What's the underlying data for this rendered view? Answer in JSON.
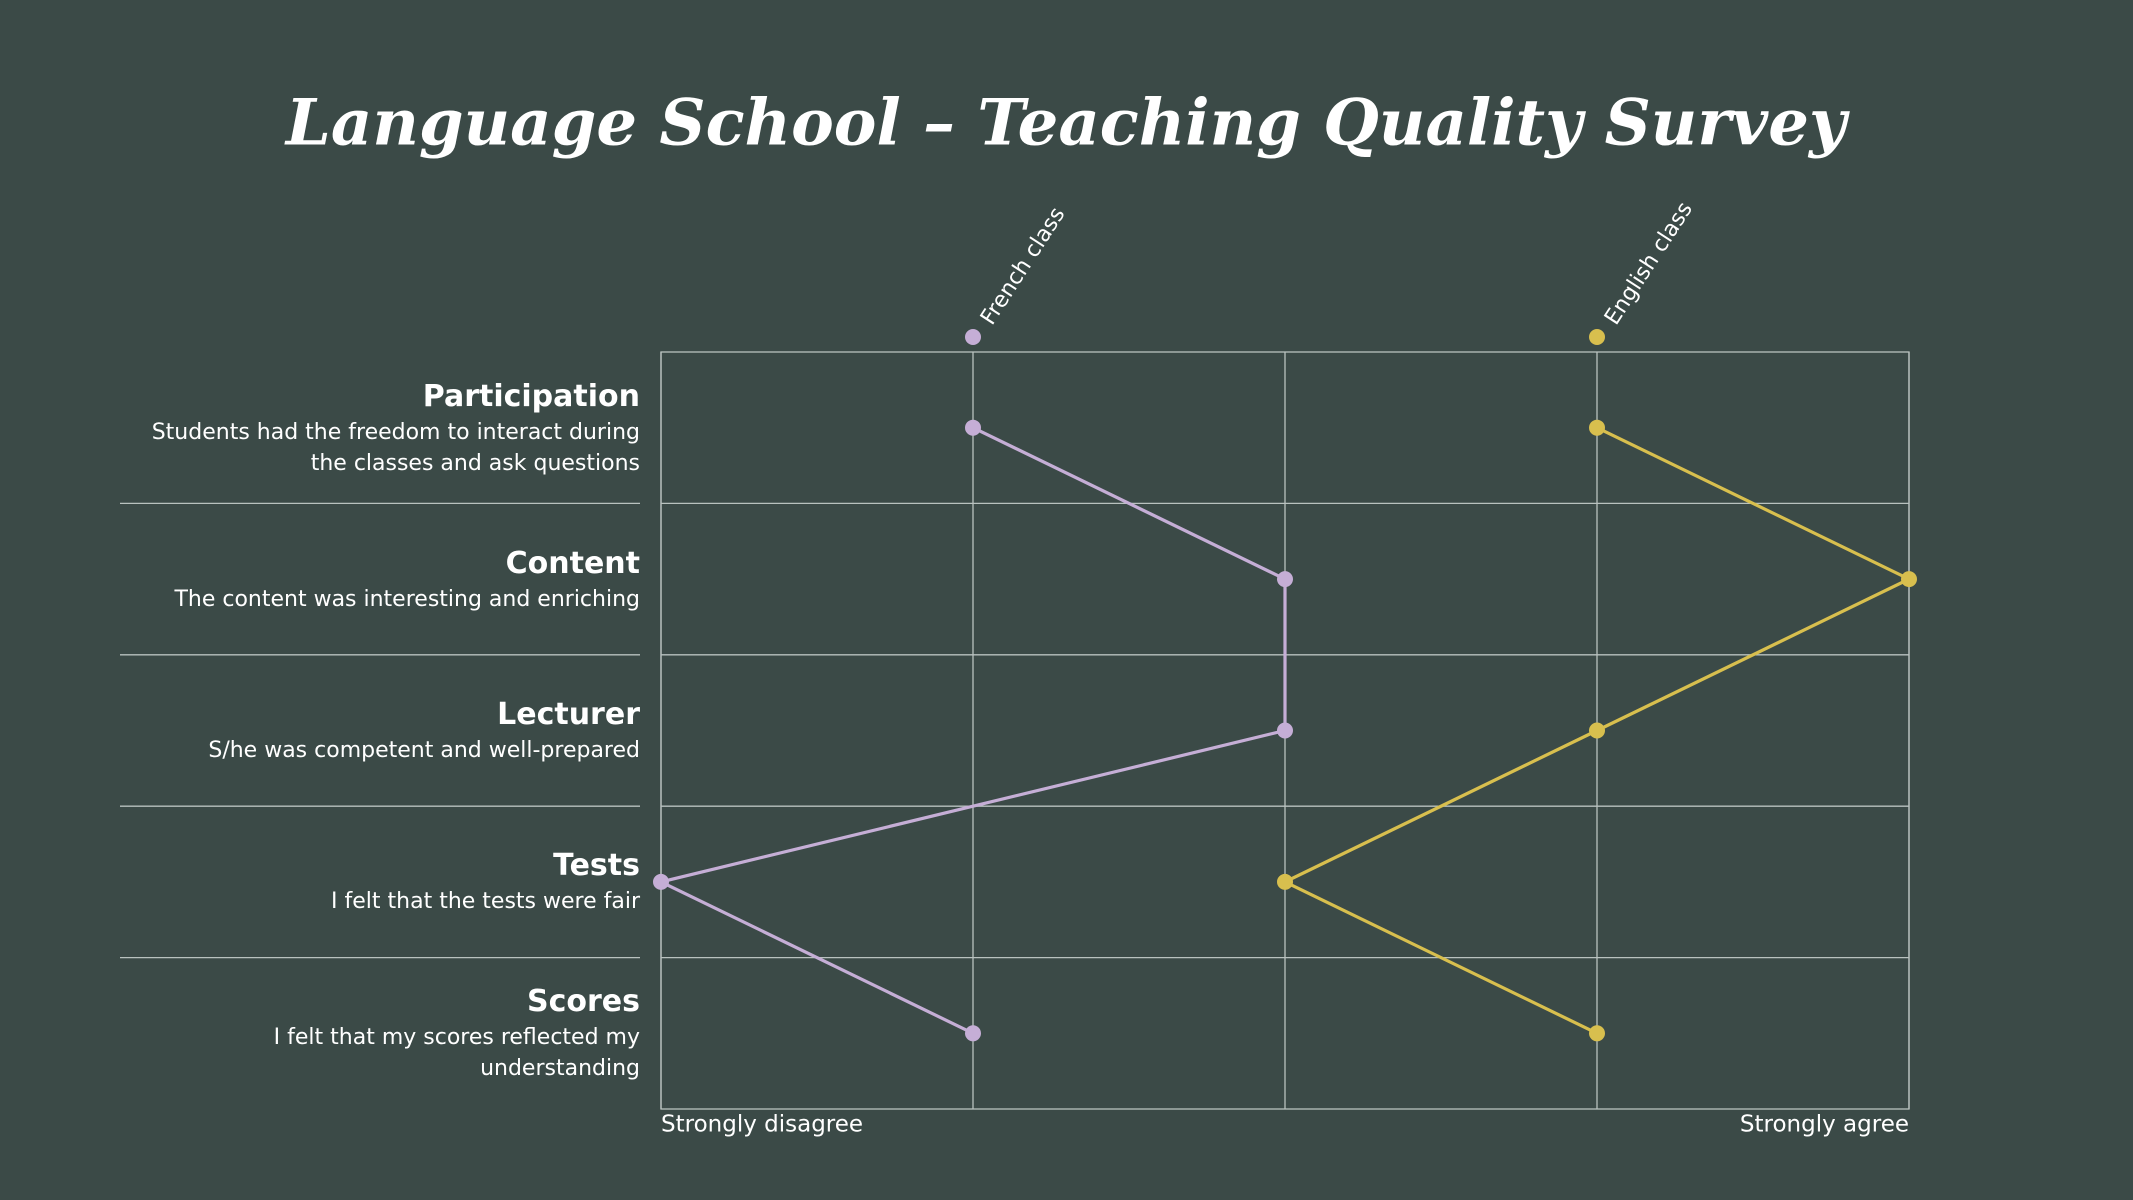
{
  "chart_data": {
    "type": "line",
    "title": "Language School – Teaching Quality Survey",
    "categories": [
      "Participation",
      "Content",
      "Lecturer",
      "Tests",
      "Scores"
    ],
    "descriptions": [
      "Students had the freedom to interact during the classes and ask questions",
      "The content was interesting and enriching",
      "S/he was competent and well-prepared",
      "I felt that the tests were fair",
      "I felt that my scores reflected my understanding"
    ],
    "series": [
      {
        "name": "French class",
        "color": "#c5aed6",
        "values": [
          2,
          3,
          3,
          1,
          2
        ]
      },
      {
        "name": "English class",
        "color": "#d8bf4e",
        "values": [
          4,
          5,
          4,
          3,
          4
        ]
      }
    ],
    "xlim": [
      1,
      5
    ],
    "xticks": [
      1,
      2,
      3,
      4,
      5
    ],
    "xlabels": [
      "Strongly disagree",
      "Strongly agree"
    ],
    "grid": true
  }
}
